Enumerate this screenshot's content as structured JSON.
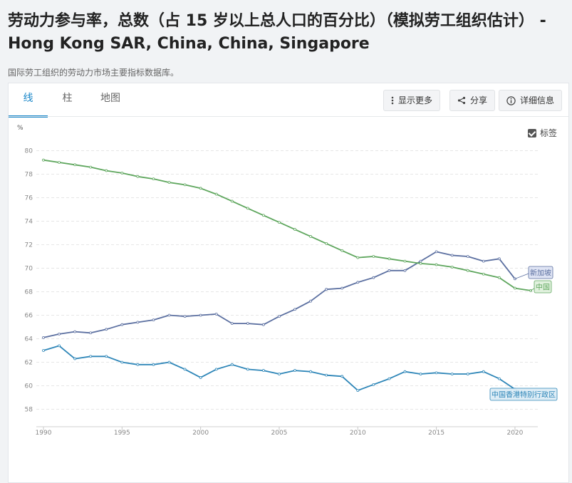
{
  "header": {
    "title": "劳动力参与率，总数（占 15 岁以上总人口的百分比）（模拟劳工组织估计） - Hong Kong SAR, China, China, Singapore",
    "subtitle": "国际劳工组织的劳动力市场主要指标数据库。"
  },
  "tabs": [
    {
      "label": "线",
      "active": true
    },
    {
      "label": "柱",
      "active": false
    },
    {
      "label": "地图",
      "active": false
    }
  ],
  "toolbar": {
    "more_label": "显示更多",
    "share_label": "分享",
    "details_label": "详细信息"
  },
  "labels_toggle": {
    "label": "标签",
    "checked": true
  },
  "chart_data": {
    "type": "line",
    "ylabel": "%",
    "ylim": [
      57,
      81
    ],
    "yticks": [
      58,
      60,
      62,
      64,
      66,
      68,
      70,
      72,
      74,
      76,
      78,
      80
    ],
    "xlim": [
      1990,
      2021
    ],
    "xticks": [
      1990,
      1995,
      2000,
      2005,
      2010,
      2015,
      2020
    ],
    "grid": true,
    "x": [
      1990,
      1991,
      1992,
      1993,
      1994,
      1995,
      1996,
      1997,
      1998,
      1999,
      2000,
      2001,
      2002,
      2003,
      2004,
      2005,
      2006,
      2007,
      2008,
      2009,
      2010,
      2011,
      2012,
      2013,
      2014,
      2015,
      2016,
      2017,
      2018,
      2019,
      2020,
      2021
    ],
    "series": [
      {
        "name": "新加坡",
        "color": "#5b6fa0",
        "label_bg": "#dde3f3",
        "values": [
          64.1,
          64.4,
          64.6,
          64.5,
          64.8,
          65.2,
          65.4,
          65.6,
          66.0,
          65.9,
          66.0,
          66.1,
          65.3,
          65.3,
          65.2,
          65.9,
          66.5,
          67.2,
          68.2,
          68.3,
          68.8,
          69.2,
          69.8,
          69.8,
          70.6,
          71.4,
          71.1,
          71.0,
          70.6,
          70.8,
          69.1,
          null
        ]
      },
      {
        "name": "中国",
        "color": "#5ea65d",
        "label_bg": "#dff0dc",
        "values": [
          79.2,
          79.0,
          78.8,
          78.6,
          78.3,
          78.1,
          77.8,
          77.6,
          77.3,
          77.1,
          76.8,
          76.3,
          75.7,
          75.1,
          74.5,
          73.9,
          73.3,
          72.7,
          72.1,
          71.5,
          70.9,
          71.0,
          70.8,
          70.6,
          70.4,
          70.3,
          70.1,
          69.8,
          69.5,
          69.2,
          68.3,
          68.1
        ]
      },
      {
        "name": "中国香港特别行政区",
        "color": "#2e86b8",
        "label_bg": "#dcecf6",
        "values": [
          63.0,
          63.4,
          62.3,
          62.5,
          62.5,
          62.0,
          61.8,
          61.8,
          62.0,
          61.4,
          60.7,
          61.4,
          61.8,
          61.4,
          61.3,
          61.0,
          61.3,
          61.2,
          60.9,
          60.8,
          59.6,
          60.1,
          60.6,
          61.2,
          61.0,
          61.1,
          61.0,
          61.0,
          61.2,
          60.6,
          59.7,
          59.0
        ]
      }
    ]
  }
}
